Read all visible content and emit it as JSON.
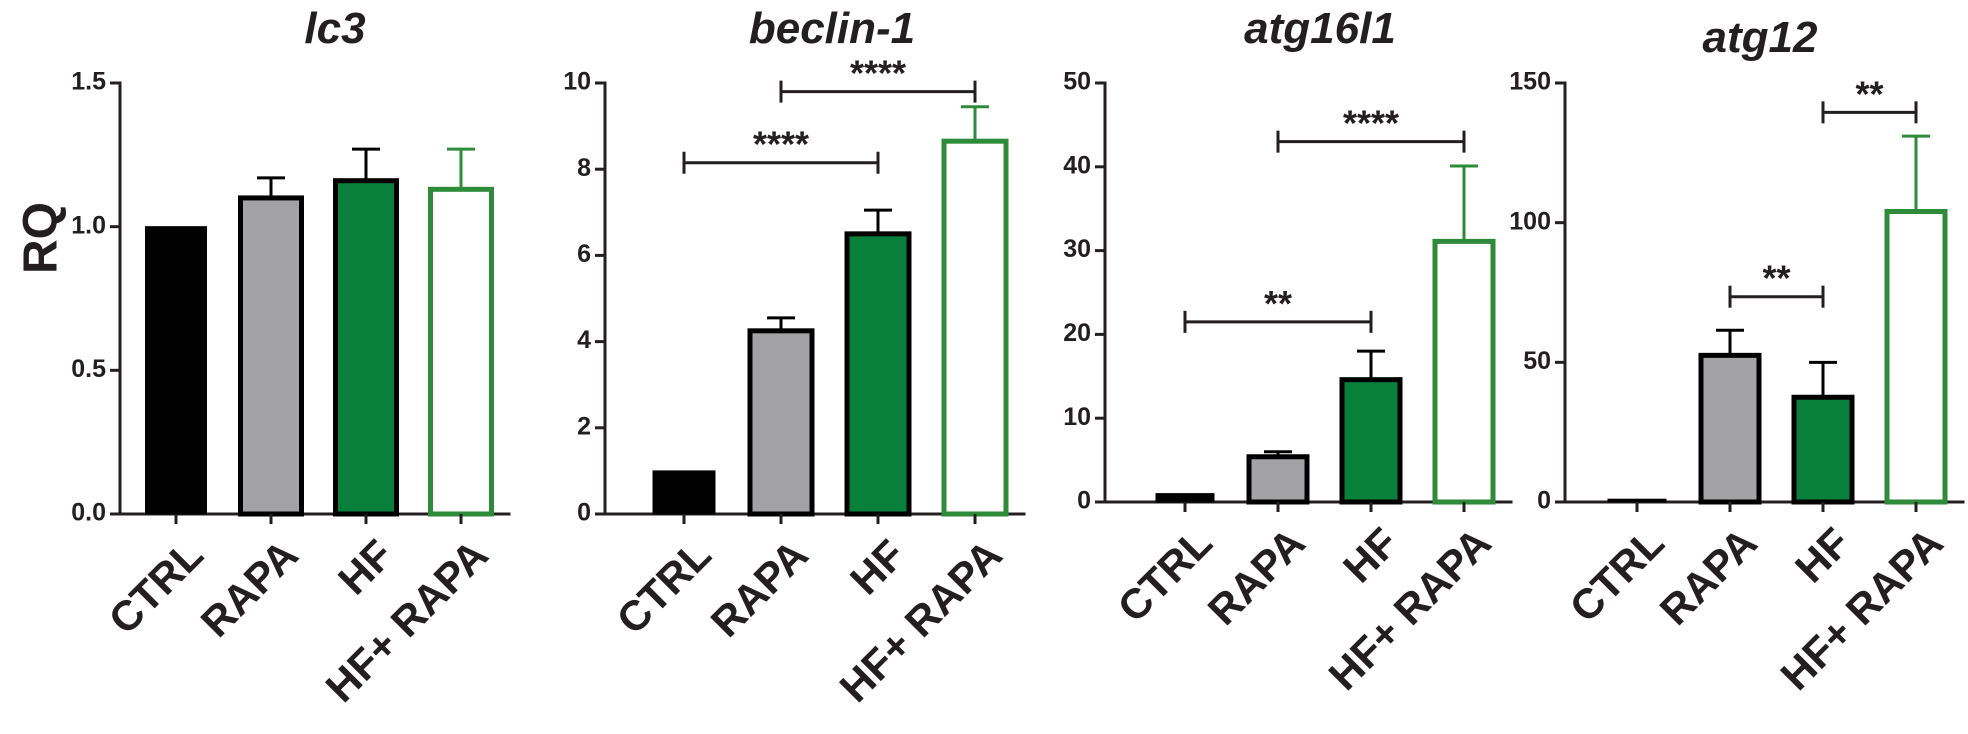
{
  "y_axis_label": "RQ",
  "colors": {
    "CTRL": "#000000",
    "RAPA": "#a3a3a6",
    "HF": "#087f3a",
    "HF+ RAPA": "#ffffff",
    "hf_rapa_outline": "#2e8b3a",
    "axis": "#231f20"
  },
  "chart_data": [
    {
      "type": "bar",
      "title": "lc3",
      "categories": [
        "CTRL",
        "RAPA",
        "HF",
        "HF+ RAPA"
      ],
      "values": [
        1.0,
        1.1,
        1.16,
        1.13
      ],
      "errors": [
        0,
        0.07,
        0.11,
        0.14
      ],
      "ylim": [
        0,
        1.5
      ],
      "yticks": [
        "0.0",
        "0.5",
        "1.0",
        "1.5"
      ],
      "significance": []
    },
    {
      "type": "bar",
      "title": "beclin-1",
      "categories": [
        "CTRL",
        "RAPA",
        "HF",
        "HF+ RAPA"
      ],
      "values": [
        1.0,
        4.25,
        6.5,
        8.65
      ],
      "errors": [
        0,
        0.3,
        0.55,
        0.8
      ],
      "ylim": [
        0,
        10
      ],
      "yticks": [
        "0",
        "2",
        "4",
        "6",
        "8",
        "10"
      ],
      "significance": [
        {
          "from": "CTRL",
          "to": "HF",
          "label": "****",
          "y": 8.15
        },
        {
          "from": "RAPA",
          "to": "HF+ RAPA",
          "label": "****",
          "y": 9.8
        }
      ]
    },
    {
      "type": "bar",
      "title": "atg16l1",
      "categories": [
        "CTRL",
        "RAPA",
        "HF",
        "HF+ RAPA"
      ],
      "values": [
        1.0,
        5.4,
        14.6,
        31.1
      ],
      "errors": [
        0,
        0.6,
        3.4,
        9.0
      ],
      "ylim": [
        0,
        50
      ],
      "yticks": [
        "0",
        "10",
        "20",
        "30",
        "40",
        "50"
      ],
      "significance": [
        {
          "from": "CTRL",
          "to": "HF",
          "label": "**",
          "y": 21.5
        },
        {
          "from": "RAPA",
          "to": "HF+ RAPA",
          "label": "****",
          "y": 43.0
        }
      ]
    },
    {
      "type": "bar",
      "title": "atg12",
      "categories": [
        "CTRL",
        "RAPA",
        "HF",
        "HF+ RAPA"
      ],
      "values": [
        1.0,
        52.5,
        37.5,
        104.0
      ],
      "errors": [
        0,
        9.0,
        12.5,
        27.0
      ],
      "ylim": [
        0,
        150
      ],
      "yticks": [
        "0",
        "50",
        "100",
        "150"
      ],
      "significance": [
        {
          "from": "RAPA",
          "to": "HF",
          "label": "**",
          "y": 73.5
        },
        {
          "from": "HF",
          "to": "HF+ RAPA",
          "label": "**",
          "y": 139.5
        }
      ]
    }
  ]
}
